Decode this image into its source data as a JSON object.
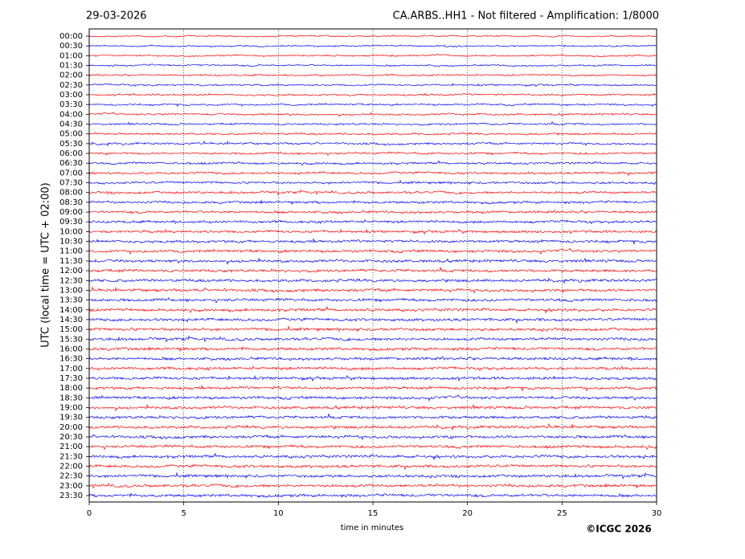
{
  "chart_data": {
    "type": "helicorder",
    "date": "29-03-2026",
    "title": "CA.ARBS..HH1 - Not filtered - Amplification: 1/8000",
    "ylabel": "UTC (local time = UTC + 02:00)",
    "xlabel": "time in minutes",
    "copyright": "©ICGC 2026",
    "categories": [
      "00:00",
      "00:30",
      "01:00",
      "01:30",
      "02:00",
      "02:30",
      "03:00",
      "03:30",
      "04:00",
      "04:30",
      "05:00",
      "05:30",
      "06:00",
      "06:30",
      "07:00",
      "07:30",
      "08:00",
      "08:30",
      "09:00",
      "09:30",
      "10:00",
      "10:30",
      "11:00",
      "11:30",
      "12:00",
      "12:30",
      "13:00",
      "13:30",
      "14:00",
      "14:30",
      "15:00",
      "15:30",
      "16:00",
      "16:30",
      "17:00",
      "17:30",
      "18:00",
      "18:30",
      "19:00",
      "19:30",
      "20:00",
      "20:30",
      "21:00",
      "21:30",
      "22:00",
      "22:30",
      "23:00",
      "23:30"
    ],
    "colors": [
      "#ff0000",
      "#0000ff"
    ],
    "xlim": [
      0,
      30
    ],
    "xticks": [
      0,
      5,
      10,
      15,
      20,
      25,
      30
    ],
    "grid": true
  }
}
